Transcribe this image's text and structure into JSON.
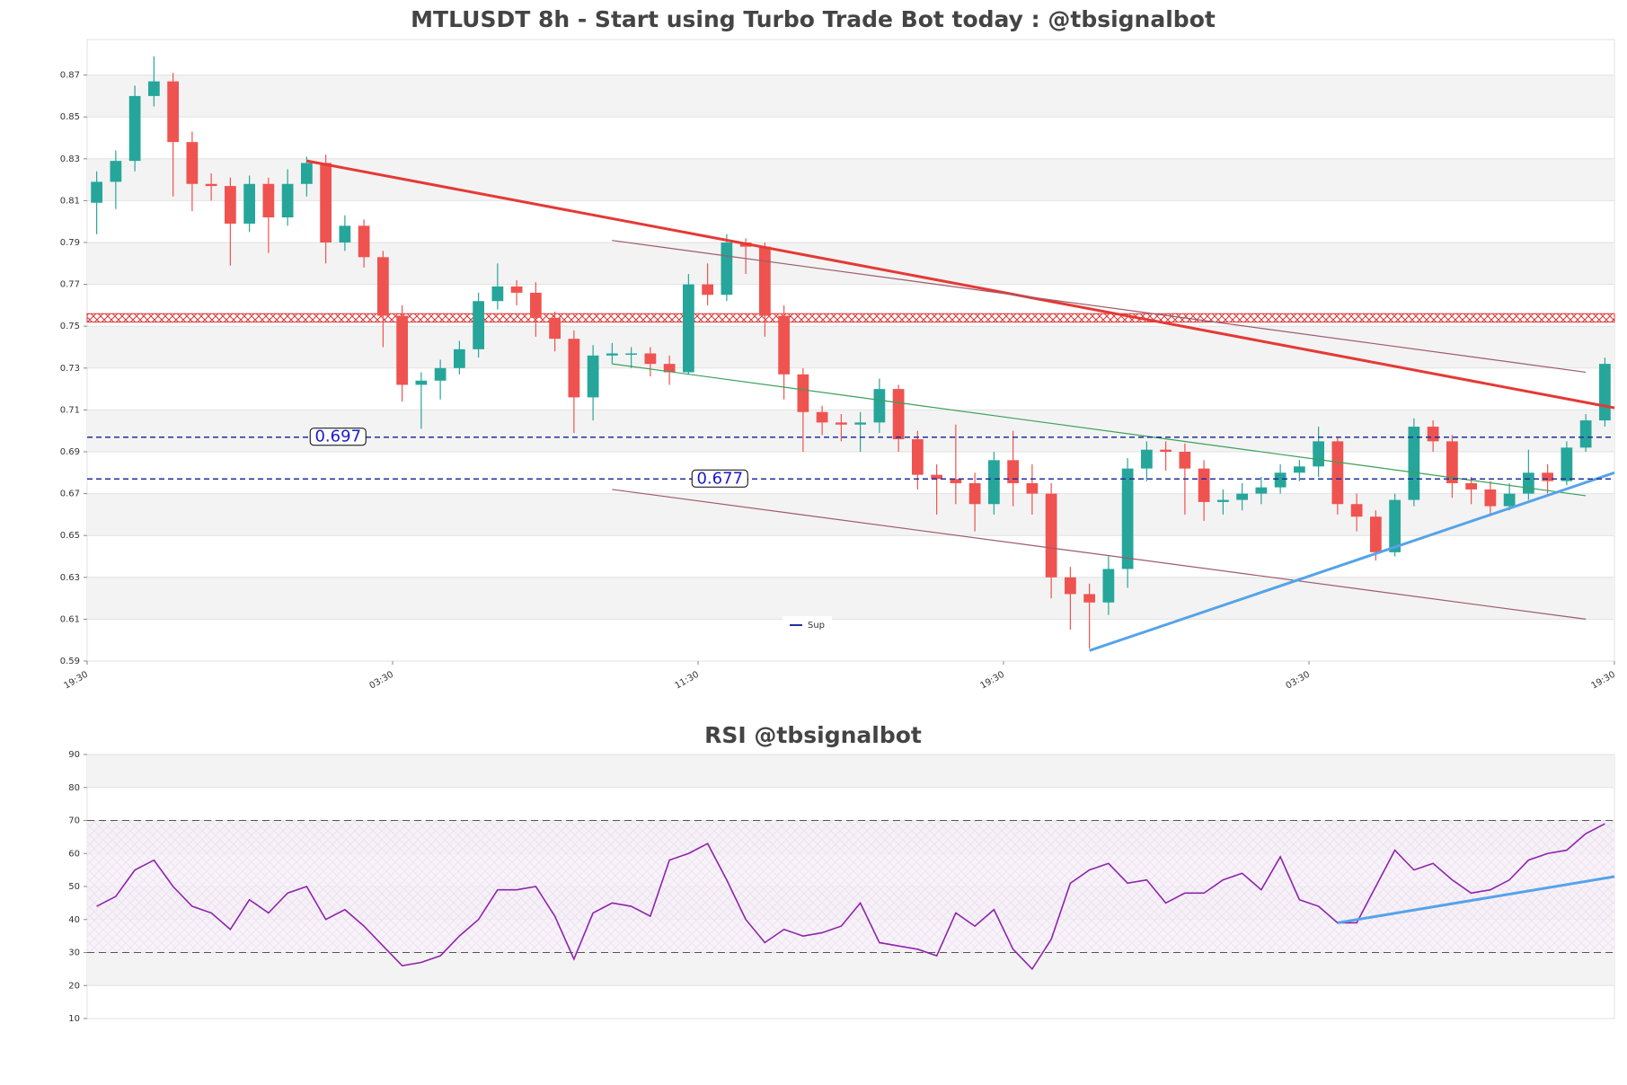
{
  "chart_data": [
    {
      "type": "candlestick",
      "title": "MTLUSDT 8h - Start using Turbo Trade Bot today : @tbsignalbot",
      "up_color": "#26a69a",
      "down_color": "#ef5350",
      "xlim": [
        0,
        80
      ],
      "xticks": [
        {
          "value": 0,
          "label": "19:30"
        },
        {
          "value": 16,
          "label": "03:30"
        },
        {
          "value": 32,
          "label": "11:30"
        },
        {
          "value": 48,
          "label": "19:30"
        },
        {
          "value": 64,
          "label": "03:30"
        },
        {
          "value": 80,
          "label": "19:30"
        }
      ],
      "ylim": [
        0.59,
        0.887
      ],
      "yticks": [
        0.59,
        0.61,
        0.63,
        0.65,
        0.67,
        0.69,
        0.71,
        0.73,
        0.75,
        0.77,
        0.79,
        0.81,
        0.83,
        0.85,
        0.87
      ],
      "open": [
        0.809,
        0.819,
        0.829,
        0.86,
        0.867,
        0.838,
        0.818,
        0.817,
        0.799,
        0.818,
        0.802,
        0.818,
        0.828,
        0.79,
        0.798,
        0.783,
        0.755,
        0.722,
        0.724,
        0.73,
        0.739,
        0.762,
        0.769,
        0.766,
        0.754,
        0.744,
        0.716,
        0.736,
        0.737,
        0.737,
        0.732,
        0.728,
        0.77,
        0.765,
        0.79,
        0.788,
        0.755,
        0.727,
        0.709,
        0.704,
        0.703,
        0.704,
        0.72,
        0.696,
        0.679,
        0.677,
        0.675,
        0.665,
        0.686,
        0.675,
        0.67,
        0.63,
        0.622,
        0.618,
        0.634,
        0.682,
        0.691,
        0.69,
        0.682,
        0.666,
        0.667,
        0.67,
        0.673,
        0.68,
        0.683,
        0.695,
        0.665,
        0.659,
        0.642,
        0.667,
        0.702,
        0.695,
        0.675,
        0.672,
        0.664,
        0.67,
        0.68,
        0.676,
        0.692,
        0.705
      ],
      "high": [
        0.824,
        0.834,
        0.865,
        0.879,
        0.871,
        0.843,
        0.823,
        0.821,
        0.822,
        0.821,
        0.825,
        0.831,
        0.832,
        0.803,
        0.801,
        0.786,
        0.76,
        0.728,
        0.734,
        0.743,
        0.766,
        0.78,
        0.772,
        0.771,
        0.757,
        0.748,
        0.741,
        0.742,
        0.74,
        0.74,
        0.736,
        0.775,
        0.78,
        0.794,
        0.792,
        0.79,
        0.76,
        0.73,
        0.712,
        0.708,
        0.709,
        0.725,
        0.722,
        0.7,
        0.684,
        0.703,
        0.68,
        0.69,
        0.7,
        0.684,
        0.675,
        0.635,
        0.627,
        0.64,
        0.687,
        0.695,
        0.695,
        0.694,
        0.686,
        0.672,
        0.675,
        0.678,
        0.684,
        0.686,
        0.702,
        0.697,
        0.67,
        0.662,
        0.67,
        0.706,
        0.705,
        0.698,
        0.678,
        0.676,
        0.675,
        0.691,
        0.684,
        0.695,
        0.708,
        0.735
      ],
      "low": [
        0.794,
        0.806,
        0.824,
        0.855,
        0.812,
        0.805,
        0.81,
        0.779,
        0.795,
        0.785,
        0.798,
        0.812,
        0.78,
        0.786,
        0.778,
        0.74,
        0.714,
        0.701,
        0.715,
        0.727,
        0.735,
        0.758,
        0.76,
        0.745,
        0.738,
        0.699,
        0.705,
        0.732,
        0.73,
        0.726,
        0.722,
        0.727,
        0.76,
        0.762,
        0.775,
        0.745,
        0.715,
        0.69,
        0.698,
        0.695,
        0.69,
        0.699,
        0.69,
        0.672,
        0.66,
        0.665,
        0.652,
        0.66,
        0.664,
        0.66,
        0.62,
        0.605,
        0.596,
        0.612,
        0.625,
        0.676,
        0.681,
        0.66,
        0.657,
        0.66,
        0.662,
        0.665,
        0.67,
        0.676,
        0.678,
        0.66,
        0.652,
        0.638,
        0.64,
        0.664,
        0.69,
        0.668,
        0.665,
        0.66,
        0.662,
        0.667,
        0.67,
        0.674,
        0.69,
        0.702
      ],
      "close": [
        0.819,
        0.829,
        0.86,
        0.867,
        0.838,
        0.818,
        0.817,
        0.799,
        0.818,
        0.802,
        0.818,
        0.828,
        0.79,
        0.798,
        0.783,
        0.755,
        0.722,
        0.724,
        0.73,
        0.739,
        0.762,
        0.769,
        0.766,
        0.754,
        0.744,
        0.716,
        0.736,
        0.737,
        0.737,
        0.732,
        0.728,
        0.77,
        0.765,
        0.79,
        0.788,
        0.755,
        0.727,
        0.709,
        0.704,
        0.703,
        0.704,
        0.72,
        0.696,
        0.679,
        0.677,
        0.675,
        0.665,
        0.686,
        0.675,
        0.67,
        0.63,
        0.622,
        0.618,
        0.634,
        0.682,
        0.691,
        0.69,
        0.682,
        0.666,
        0.667,
        0.67,
        0.673,
        0.68,
        0.683,
        0.695,
        0.665,
        0.659,
        0.642,
        0.667,
        0.702,
        0.695,
        0.675,
        0.672,
        0.664,
        0.67,
        0.68,
        0.676,
        0.692,
        0.705,
        0.732
      ],
      "zone": [
        0.752,
        0.756
      ],
      "levels": [
        {
          "value": 0.697,
          "color": "#1f2f9f",
          "label_x": 13
        },
        {
          "value": 0.677,
          "color": "#1f2f9f",
          "name": "Sup",
          "label_x": 33
        }
      ],
      "trendlines": [
        {
          "color": "#e53935",
          "width": 3,
          "x": [
            11.5,
            80
          ],
          "y": [
            0.829,
            0.711
          ]
        },
        {
          "color": "#9c5a6a",
          "width": 1.2,
          "x": [
            27.5,
            78.5
          ],
          "y": [
            0.791,
            0.728
          ]
        },
        {
          "color": "#3aa05a",
          "width": 1.2,
          "x": [
            27.5,
            78.5
          ],
          "y": [
            0.732,
            0.669
          ]
        },
        {
          "color": "#9c5a6a",
          "width": 1.2,
          "x": [
            27.5,
            78.5
          ],
          "y": [
            0.672,
            0.61
          ]
        },
        {
          "color": "#55a3e8",
          "width": 3,
          "x": [
            52.5,
            80
          ],
          "y": [
            0.595,
            0.68
          ]
        }
      ]
    },
    {
      "type": "line",
      "title": "RSI @tbsignalbot",
      "xlim": [
        0,
        80
      ],
      "ylim": [
        10,
        90
      ],
      "yticks": [
        10,
        20,
        30,
        40,
        50,
        60,
        70,
        80,
        90
      ],
      "levels": [
        30,
        70
      ],
      "series": [
        {
          "color": "#8e24aa",
          "values": [
            44,
            47,
            55,
            58,
            50,
            44,
            42,
            37,
            46,
            42,
            48,
            50,
            40,
            43,
            38,
            32,
            26,
            27,
            29,
            35,
            40,
            49,
            49,
            50,
            41,
            28,
            42,
            45,
            44,
            41,
            58,
            60,
            63,
            52,
            40,
            33,
            37,
            35,
            36,
            38,
            45,
            33,
            32,
            31,
            29,
            42,
            38,
            43,
            31,
            25,
            34,
            51,
            55,
            57,
            51,
            52,
            45,
            48,
            48,
            52,
            54,
            49,
            59,
            46,
            44,
            39,
            39,
            50,
            61,
            55,
            57,
            52,
            48,
            49,
            52,
            58,
            60,
            61,
            66,
            69
          ]
        }
      ],
      "trendlines": [
        {
          "color": "#55a3e8",
          "width": 3,
          "x": [
            65.5,
            80
          ],
          "y": [
            39,
            53
          ]
        }
      ]
    }
  ]
}
